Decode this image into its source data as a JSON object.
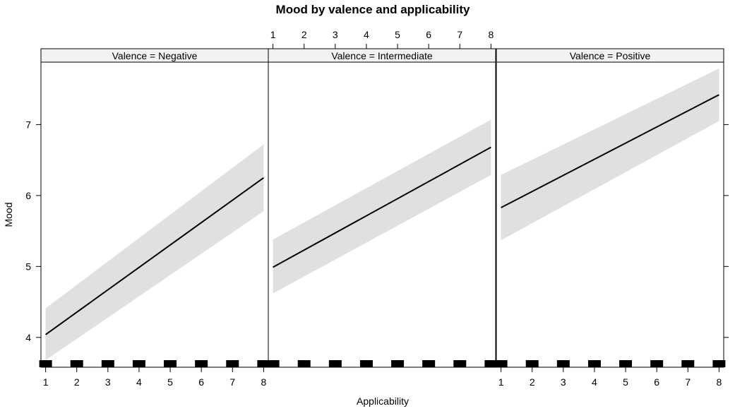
{
  "chart_data": {
    "type": "line",
    "title": "Mood by valence and applicability",
    "xlabel": "Applicability",
    "ylabel": "Mood",
    "panel_variable": "Valence",
    "x_ticks": [
      1,
      2,
      3,
      4,
      5,
      6,
      7,
      8
    ],
    "y_ticks": [
      4,
      5,
      6,
      7
    ],
    "xlim": [
      0.85,
      8.15
    ],
    "ylim": [
      3.58,
      7.88
    ],
    "rug_x": [
      1,
      2,
      3,
      4,
      5,
      6,
      7,
      8
    ],
    "panels": [
      {
        "strip": "Valence = Negative",
        "level": "Negative",
        "fit": {
          "x": [
            1,
            8
          ],
          "y": [
            4.04,
            6.25
          ]
        },
        "band": {
          "x": [
            1,
            8
          ],
          "lower": [
            3.68,
            5.78
          ],
          "upper": [
            4.41,
            6.72
          ]
        }
      },
      {
        "strip": "Valence = Intermediate",
        "level": "Intermediate",
        "fit": {
          "x": [
            1,
            8
          ],
          "y": [
            4.99,
            6.68
          ]
        },
        "band": {
          "x": [
            1,
            8
          ],
          "lower": [
            4.62,
            6.29
          ],
          "upper": [
            5.38,
            7.07
          ]
        }
      },
      {
        "strip": "Valence = Positive",
        "level": "Positive",
        "fit": {
          "x": [
            1,
            8
          ],
          "y": [
            5.83,
            7.42
          ]
        },
        "band": {
          "x": [
            1,
            8
          ],
          "lower": [
            5.37,
            7.05
          ],
          "upper": [
            6.29,
            7.79
          ]
        }
      }
    ],
    "band_color": "#e0e0e0",
    "line_color": "#000000",
    "strip_color": "#f2f2f2"
  }
}
